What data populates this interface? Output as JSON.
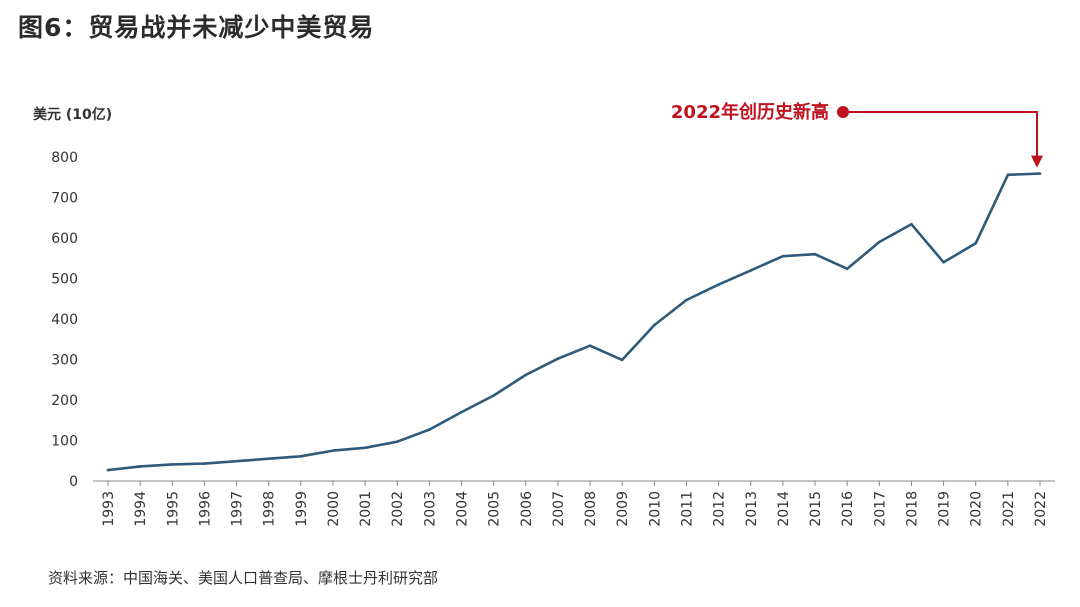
{
  "title": "图6：贸易战并未减少中美贸易",
  "source": "资料来源：中国海关、美国人口普查局、摩根士丹利研究部",
  "colors": {
    "line": "#2f5a7a",
    "annotation": "#c0121e",
    "axis": "#888888"
  },
  "chart_data": {
    "type": "line",
    "ylabel": "美元 (10亿)",
    "ylim": [
      0,
      800
    ],
    "yticks": [
      0,
      100,
      200,
      300,
      400,
      500,
      600,
      700,
      800
    ],
    "grid": false,
    "x": [
      "1993",
      "1994",
      "1995",
      "1996",
      "1997",
      "1998",
      "1999",
      "2000",
      "2001",
      "2002",
      "2003",
      "2004",
      "2005",
      "2006",
      "2007",
      "2008",
      "2009",
      "2010",
      "2011",
      "2012",
      "2013",
      "2014",
      "2015",
      "2016",
      "2017",
      "2018",
      "2019",
      "2020",
      "2021",
      "2022"
    ],
    "series": [
      {
        "values": [
          27,
          36,
          41,
          43,
          49,
          55,
          61,
          75,
          82,
          97,
          127,
          170,
          211,
          262,
          302,
          334,
          299,
          385,
          447,
          485,
          520,
          555,
          560,
          524,
          590,
          634,
          540,
          587,
          756,
          759
        ]
      }
    ],
    "annotation": {
      "text": "2022年创历史新高",
      "x": "2022",
      "y": 759
    }
  }
}
